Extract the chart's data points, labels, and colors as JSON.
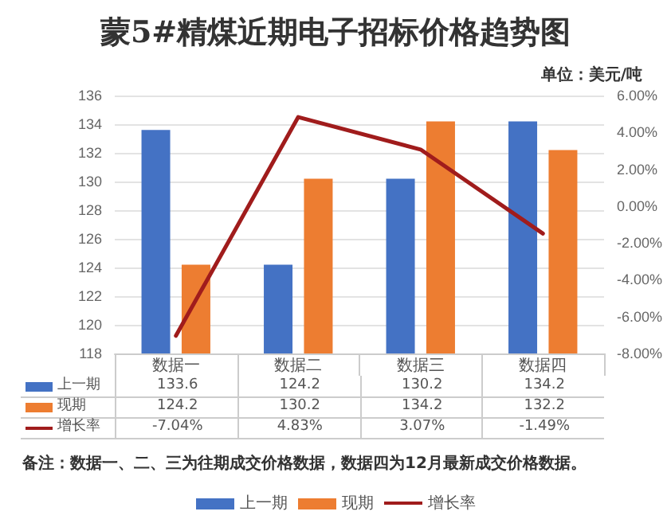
{
  "chart_data": {
    "type": "bar",
    "title": "蒙5#精煤近期电子招标价格趋势图",
    "annotations": [
      "单位：美元/吨",
      "备注：数据一、二、三为往期成交价格数据，数据四为12月最新成交价格数据。"
    ],
    "categories": [
      "数据一",
      "数据二",
      "数据三",
      "数据四"
    ],
    "series": [
      {
        "name": "上一期",
        "color": "#4472c4",
        "values": [
          133.6,
          124.2,
          130.2,
          134.2
        ],
        "value_labels": [
          "133.6",
          "124.2",
          "130.2",
          "134.2"
        ]
      },
      {
        "name": "现期",
        "color": "#ed7d31",
        "values": [
          124.2,
          130.2,
          134.2,
          132.2
        ],
        "value_labels": [
          "124.2",
          "130.2",
          "134.2",
          "132.2"
        ]
      },
      {
        "name": "增长率",
        "type": "line",
        "axis": "y2",
        "color": "#a01c1c",
        "values": [
          -7.04,
          4.83,
          3.07,
          -1.49
        ],
        "value_labels": [
          "-7.04%",
          "4.83%",
          "3.07%",
          "-1.49%"
        ]
      }
    ],
    "ylim": [
      118,
      136
    ],
    "yticks": [
      118,
      120,
      122,
      124,
      126,
      128,
      130,
      132,
      134,
      136
    ],
    "y2lim": [
      -8,
      6
    ],
    "y2ticks": [
      {
        "value": -8,
        "label": "-8.00%"
      },
      {
        "value": -6,
        "label": "-6.00%"
      },
      {
        "value": -4,
        "label": "-4.00%"
      },
      {
        "value": -2,
        "label": "-2.00%"
      },
      {
        "value": 0,
        "label": "0.00%"
      },
      {
        "value": 2,
        "label": "2.00%"
      },
      {
        "value": 4,
        "label": "4.00%"
      },
      {
        "value": 6,
        "label": "6.00%"
      }
    ],
    "grid": "y",
    "legend": "bottom",
    "marker": "none",
    "line_style": "solid"
  }
}
